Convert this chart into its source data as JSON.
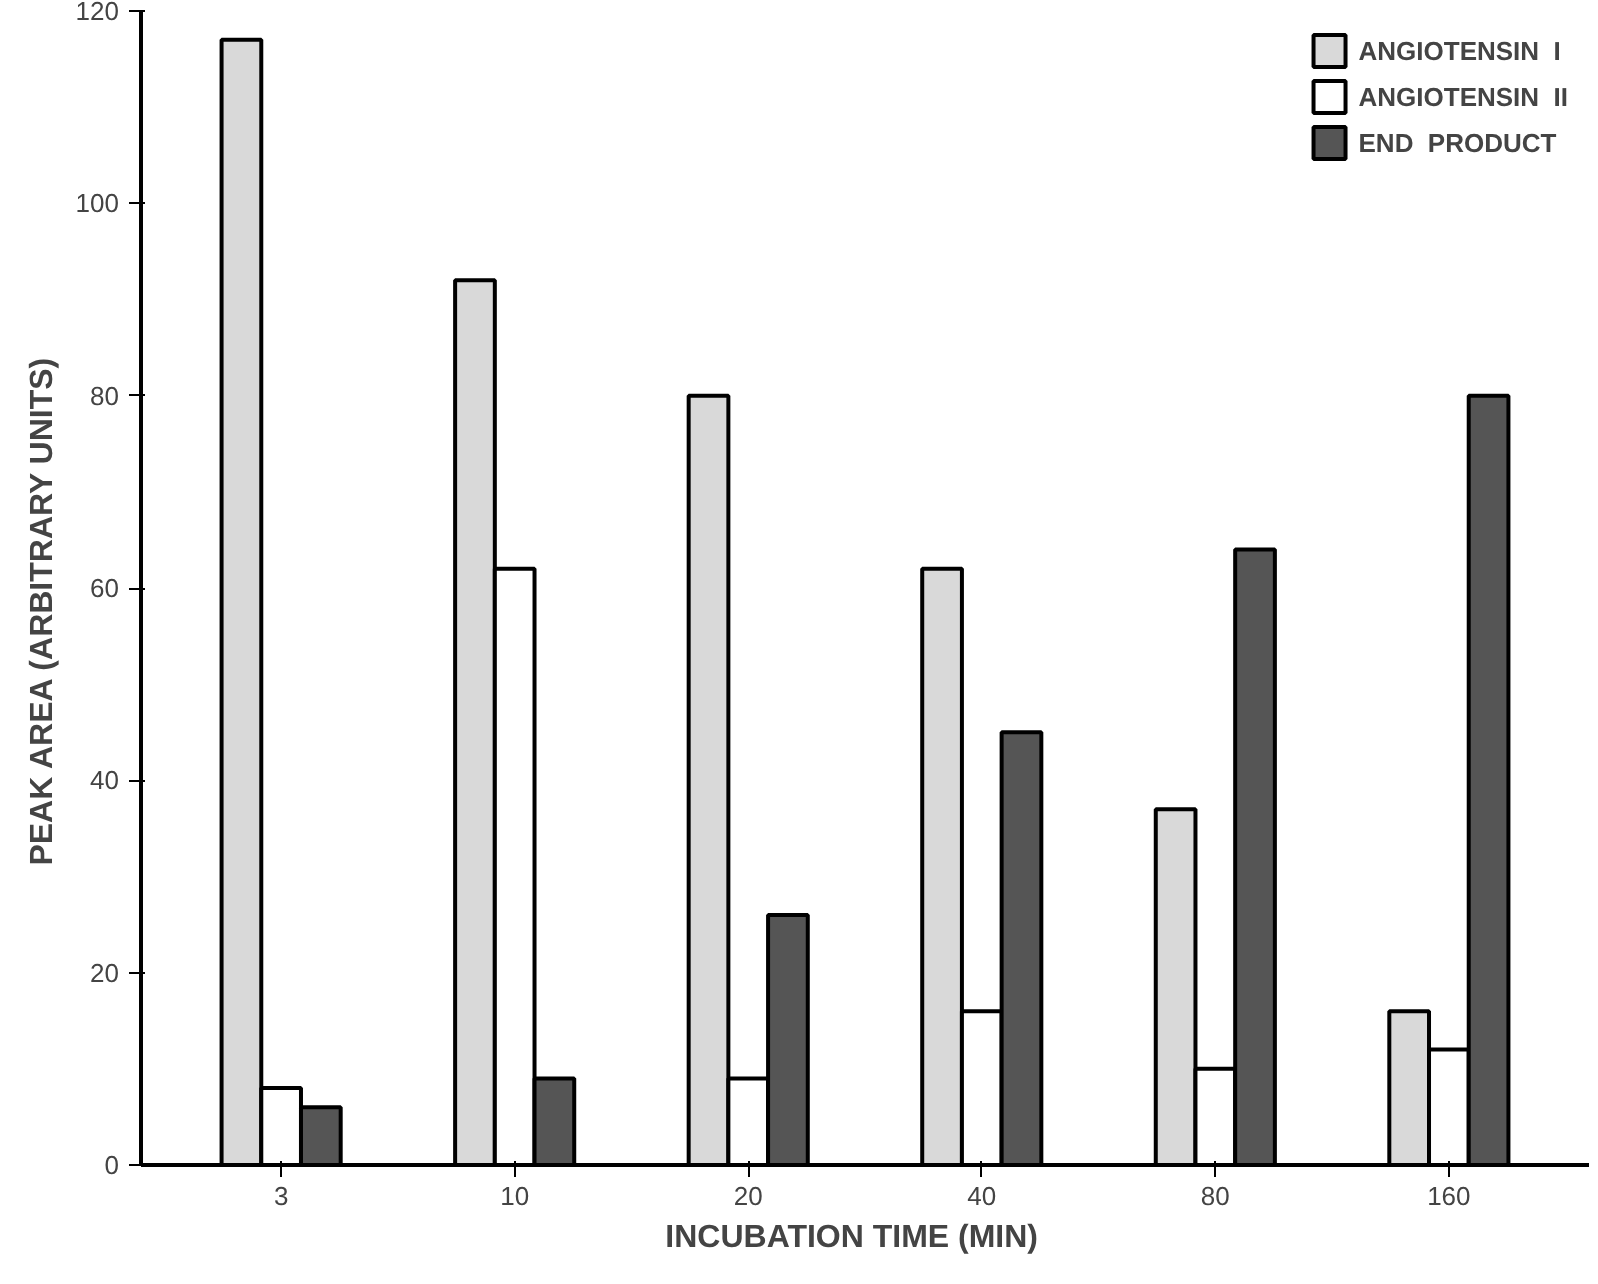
{
  "chart_data": {
    "type": "bar",
    "xlabel": "INCUBATION   TIME  (MIN)",
    "ylabel": "PEAK    AREA  (ARBITRARY  UNITS)",
    "categories": [
      "3",
      "10",
      "20",
      "40",
      "80",
      "160"
    ],
    "series": [
      {
        "name": "ANGIOTENSIN  I",
        "color": "#d9d9d9",
        "values": [
          117,
          92,
          80,
          62,
          37,
          16
        ]
      },
      {
        "name": "ANGIOTENSIN  II",
        "color": "#ffffff",
        "values": [
          8,
          62,
          9,
          16,
          10,
          12
        ]
      },
      {
        "name": "END  PRODUCT",
        "color": "#555555",
        "values": [
          6,
          9,
          26,
          45,
          64,
          80
        ]
      }
    ],
    "ylim": [
      0,
      120
    ],
    "yticks": [
      0,
      20,
      40,
      60,
      80,
      100,
      120
    ],
    "grid": false,
    "legend": "top right"
  }
}
